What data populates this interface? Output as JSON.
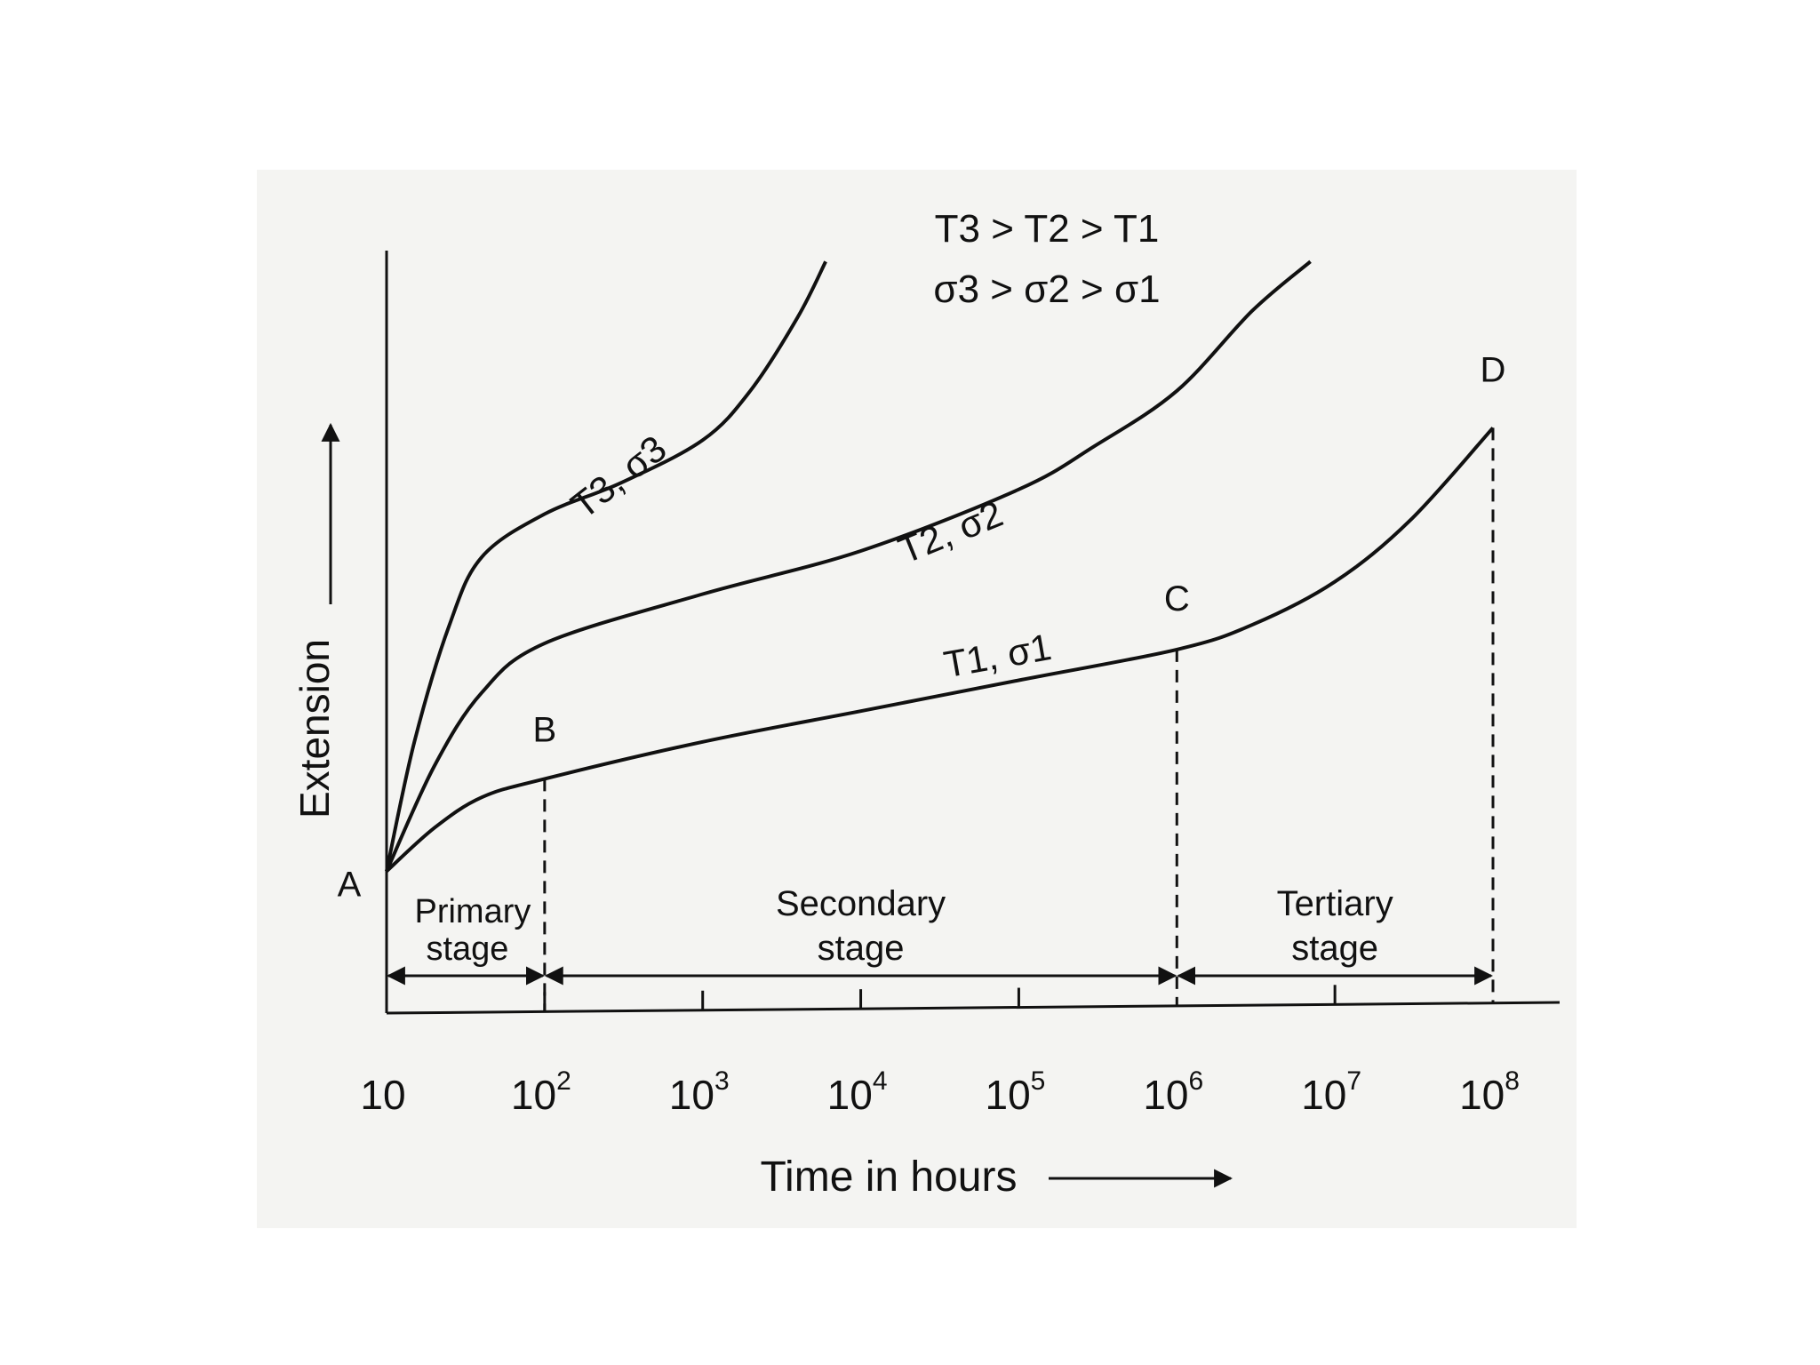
{
  "chart_data": {
    "type": "line",
    "x_scale": "log",
    "x_ticks": [
      {
        "base": "10",
        "exp": ""
      },
      {
        "base": "10",
        "exp": "2"
      },
      {
        "base": "10",
        "exp": "3"
      },
      {
        "base": "10",
        "exp": "4"
      },
      {
        "base": "10",
        "exp": "5"
      },
      {
        "base": "10",
        "exp": "6"
      },
      {
        "base": "10",
        "exp": "7"
      },
      {
        "base": "10",
        "exp": "8"
      }
    ],
    "x_tick_values": [
      10,
      100,
      1000,
      10000,
      100000,
      1000000,
      10000000,
      100000000
    ],
    "xlabel": "Time in hours",
    "ylabel": "Extension",
    "xlim": [
      10,
      100000000
    ],
    "ylim": [
      0,
      100
    ],
    "condition_lines": [
      "T3 > T2 > T1",
      "σ3 > σ2 > σ1"
    ],
    "series": [
      {
        "name": "T1, σ1",
        "x": [
          10,
          20,
          40,
          100,
          1000,
          10000,
          100000,
          1000000,
          3000000,
          10000000,
          30000000,
          100000000
        ],
        "y": [
          5,
          12,
          17,
          20,
          26,
          31,
          36,
          41,
          45,
          52,
          62,
          77
        ]
      },
      {
        "name": "T2, σ2",
        "x": [
          10,
          20,
          40,
          100,
          1000,
          10000,
          100000,
          300000,
          1000000,
          3000000,
          7000000
        ],
        "y": [
          5,
          22,
          34,
          42,
          50,
          57,
          67,
          74,
          83,
          96,
          104
        ]
      },
      {
        "name": "T3, σ3",
        "x": [
          10,
          15,
          25,
          40,
          100,
          300,
          1000,
          2000,
          4000,
          6000
        ],
        "y": [
          5,
          26,
          45,
          56,
          63,
          68,
          75,
          83,
          95,
          104
        ]
      }
    ],
    "points": [
      {
        "label": "A",
        "x": 10,
        "y": 5
      },
      {
        "label": "B",
        "x": 100,
        "y": 20
      },
      {
        "label": "C",
        "x": 1000000,
        "y": 41
      },
      {
        "label": "D",
        "x": 100000000,
        "y": 77
      }
    ],
    "stages": [
      {
        "lines": [
          "Primary",
          "stage"
        ],
        "from": 10,
        "to": 100
      },
      {
        "lines": [
          "Secondary",
          "stage"
        ],
        "from": 100,
        "to": 1000000
      },
      {
        "lines": [
          "Tertiary",
          "stage"
        ],
        "from": 1000000,
        "to": 100000000
      }
    ]
  },
  "colors": {
    "ink": "#111111",
    "paper": "#f4f4f2",
    "background": "#ffffff"
  }
}
